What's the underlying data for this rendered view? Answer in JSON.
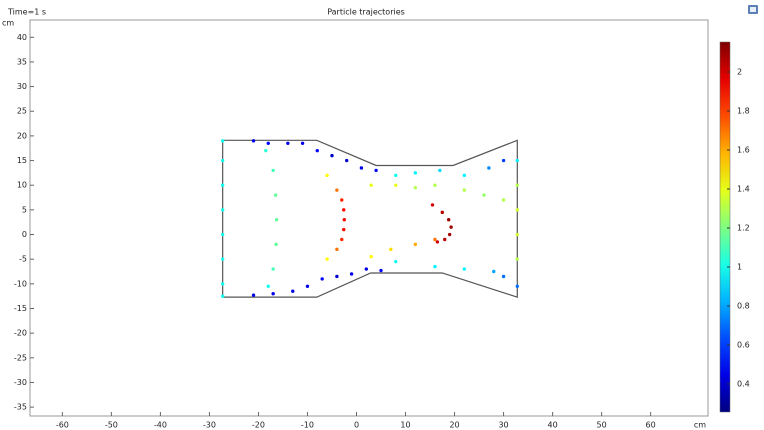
{
  "chart_data": {
    "type": "scatter",
    "title": "Particle trajectories",
    "time_label": "Time=1 s",
    "x_unit": "cm",
    "y_unit": "cm",
    "xlim": [
      -66.6,
      71.7
    ],
    "ylim": [
      -36.8,
      43.5
    ],
    "xticks": [
      -60,
      -50,
      -40,
      -30,
      -20,
      -10,
      0,
      10,
      20,
      30,
      40,
      50,
      60
    ],
    "yticks": [
      -35,
      -30,
      -25,
      -20,
      -15,
      -10,
      -5,
      0,
      5,
      10,
      15,
      20,
      25,
      30,
      35,
      40
    ],
    "colormap": "jet",
    "clim": [
      0.256,
      2.154
    ],
    "cticks": [
      0.4,
      0.6,
      0.8,
      1,
      1.2,
      1.4,
      1.6,
      1.8,
      2
    ],
    "geometry": {
      "x": [
        -27.3,
        -8.1,
        4,
        19.7,
        32.8,
        32.8,
        17.5,
        2.9,
        -8.1,
        -27.3,
        -27.3
      ],
      "y": [
        19.1,
        19.1,
        14,
        14,
        19.1,
        -12.7,
        -7.8,
        -7.8,
        -12.7,
        -12.7,
        19.1
      ]
    },
    "x": [
      -27.3,
      -27.3,
      -27.3,
      -27.3,
      -27.3,
      -27.3,
      -27.3,
      -27.3,
      32.8,
      32.8,
      32.8,
      32.8,
      32.8,
      32.8,
      -18.5,
      -17,
      -16.5,
      -16.3,
      -16.4,
      -17,
      -18,
      -6,
      -4,
      -3,
      -2.6,
      -2.5,
      -2.6,
      -3,
      -4,
      -6,
      15.5,
      17.5,
      18.8,
      19.3,
      19,
      18,
      16.5,
      -21,
      -18,
      -14,
      -11,
      -8,
      -5,
      -2,
      1,
      4,
      -21,
      -17,
      -13,
      -10,
      -7,
      -4,
      -1,
      2,
      5,
      3,
      8,
      12,
      16,
      22,
      26,
      30,
      3,
      7,
      12,
      16,
      8,
      12,
      17,
      22,
      27,
      30,
      8,
      16,
      22,
      28,
      30
    ],
    "values": [
      19,
      15,
      10,
      5,
      0,
      -5,
      -10,
      -12.5,
      15,
      10,
      5,
      0,
      -5,
      -10.5,
      17,
      13,
      8,
      3,
      -2,
      -7,
      -10.5,
      12,
      9,
      7,
      5,
      3,
      1,
      -1,
      -3,
      -5,
      6,
      4.5,
      3,
      1.5,
      0,
      -1,
      -1.5,
      19,
      18.5,
      18.5,
      18.5,
      17,
      16,
      15,
      13.5,
      13,
      -12.3,
      -12,
      -11.5,
      -10.5,
      -9,
      -8.5,
      -8,
      -7,
      -7.3,
      10,
      10,
      9.5,
      10,
      9,
      8,
      7,
      -4.5,
      -3,
      -2,
      -1,
      12,
      12.5,
      13,
      12,
      13.5,
      15,
      -5.5,
      -6.5,
      -7,
      -7.5,
      -8.5
    ],
    "color_values": [
      1.0,
      1.0,
      1.0,
      1.0,
      1.0,
      1.0,
      1.0,
      1.0,
      0.95,
      1.3,
      1.35,
      1.35,
      1.3,
      0.7,
      1.05,
      1.1,
      1.15,
      1.15,
      1.15,
      1.1,
      1.0,
      1.45,
      1.7,
      1.85,
      1.9,
      1.92,
      1.9,
      1.85,
      1.7,
      1.45,
      2.0,
      2.05,
      2.1,
      2.1,
      2.1,
      2.05,
      2.0,
      0.45,
      0.5,
      0.45,
      0.45,
      0.5,
      0.4,
      0.4,
      0.45,
      0.5,
      0.45,
      0.45,
      0.45,
      0.45,
      0.5,
      0.4,
      0.45,
      0.45,
      0.5,
      1.4,
      1.4,
      1.3,
      1.3,
      1.3,
      1.25,
      1.3,
      1.45,
      1.5,
      1.6,
      1.7,
      1.0,
      0.95,
      0.9,
      0.95,
      0.75,
      0.6,
      1.0,
      0.95,
      0.95,
      0.8,
      0.7
    ]
  }
}
